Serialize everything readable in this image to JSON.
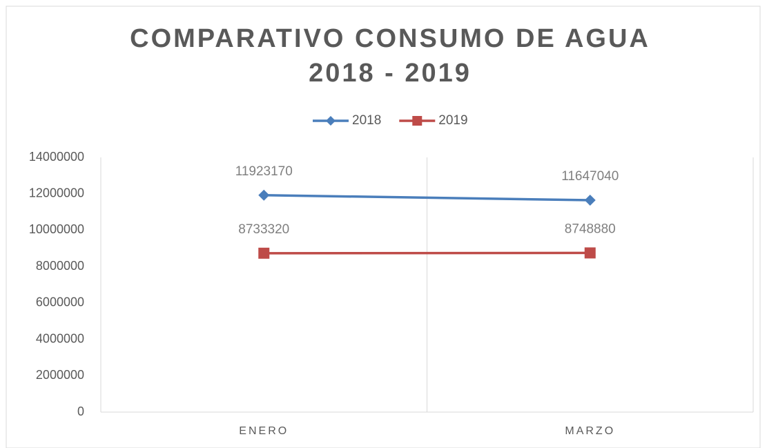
{
  "chart_data": {
    "type": "line",
    "title": [
      "COMPARATIVO CONSUMO DE AGUA",
      "2018 - 2019"
    ],
    "categories": [
      "ENERO",
      "MARZO"
    ],
    "series": [
      {
        "name": "2018",
        "color": "#4a7ebb",
        "marker": "diamond",
        "values": [
          11923170,
          11647040
        ]
      },
      {
        "name": "2019",
        "color": "#be4b48",
        "marker": "square",
        "values": [
          8733320,
          8748880
        ]
      }
    ],
    "ylim": [
      0,
      14000000
    ],
    "yticks": [
      0,
      2000000,
      4000000,
      6000000,
      8000000,
      10000000,
      12000000,
      14000000
    ],
    "grid": false,
    "legend": "top"
  }
}
